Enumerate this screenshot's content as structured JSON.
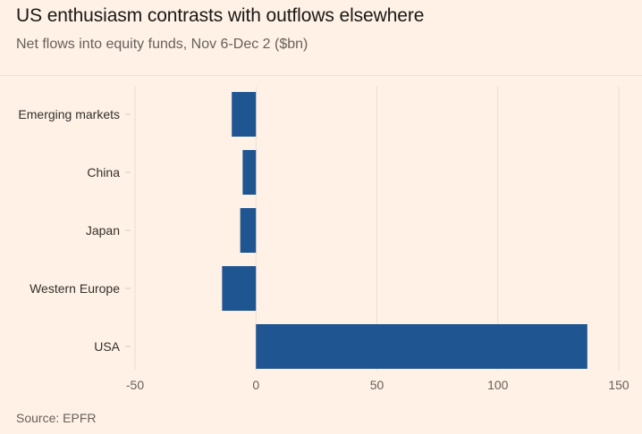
{
  "title": "US enthusiasm contrasts with outflows elsewhere",
  "subtitle": "Net flows into equity funds, Nov 6-Dec 2 ($bn)",
  "source": "Source: EPFR",
  "colors": {
    "background": "#fff1e5",
    "bar": "#1f5591",
    "grid": "#eadfd5"
  },
  "chart_data": {
    "type": "bar",
    "orientation": "horizontal",
    "title": "US enthusiasm contrasts with outflows elsewhere",
    "subtitle": "Net flows into equity funds, Nov 6-Dec 2 ($bn)",
    "categories": [
      "Emerging markets",
      "China",
      "Japan",
      "Western Europe",
      "USA"
    ],
    "values": [
      -10,
      -5.5,
      -6.5,
      -14,
      137
    ],
    "xlim": [
      -50,
      150
    ],
    "xticks": [
      -50,
      0,
      50,
      100,
      150
    ],
    "xtick_labels": [
      "-50",
      "0",
      "50",
      "100",
      "150"
    ],
    "grid": true,
    "xlabel": "",
    "ylabel": ""
  }
}
